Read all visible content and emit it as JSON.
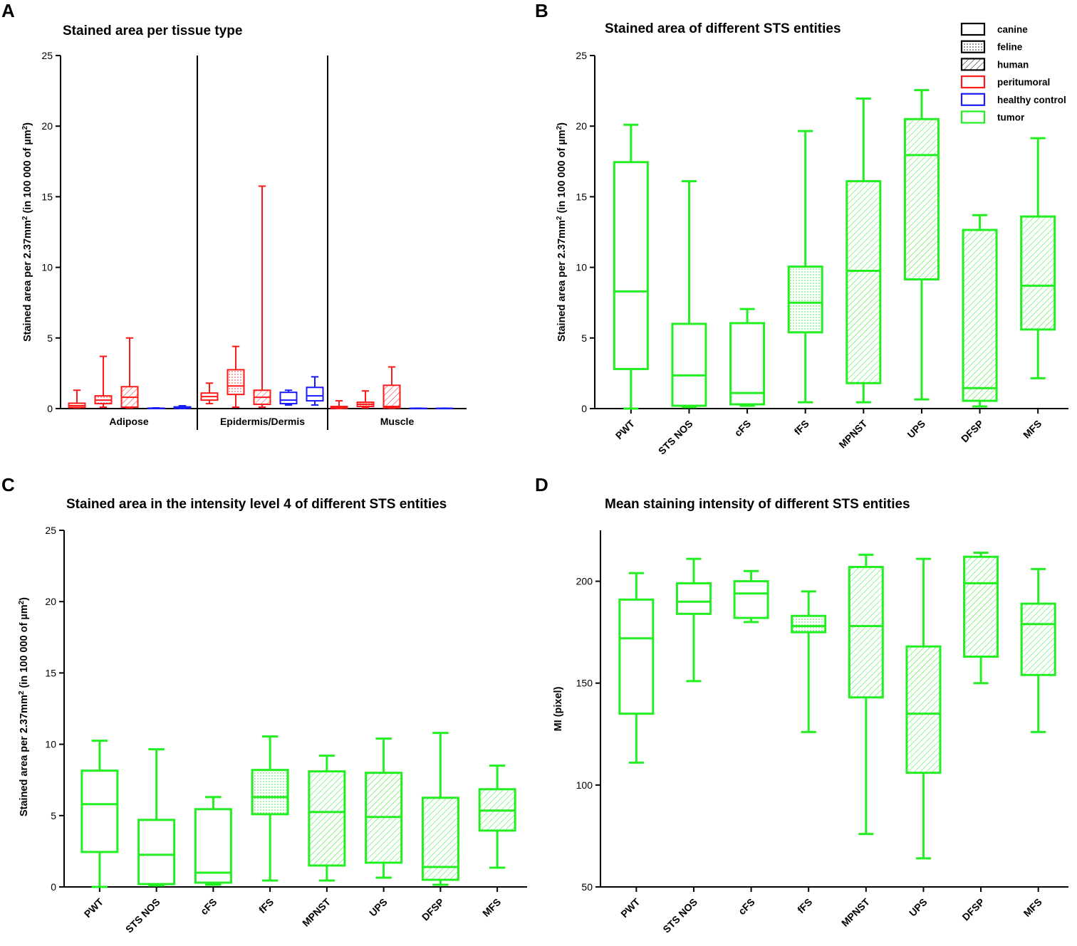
{
  "colors": {
    "red": "#ff1a1a",
    "blue": "#1a1aff",
    "green": "#22ee22",
    "black": "#000000"
  },
  "legend": [
    {
      "label": "canine",
      "pattern": "none",
      "color": "#000000"
    },
    {
      "label": "feline",
      "pattern": "dots",
      "color": "#000000"
    },
    {
      "label": "human",
      "pattern": "hatch",
      "color": "#000000"
    },
    {
      "label": "peritumoral",
      "pattern": "none",
      "color": "#ff1a1a"
    },
    {
      "label": "healthy control",
      "pattern": "none",
      "color": "#1a1aff"
    },
    {
      "label": "tumor",
      "pattern": "none",
      "color": "#22ee22"
    }
  ],
  "chart_data": [
    {
      "id": "A",
      "panel_letter": "A",
      "type": "boxplot",
      "title": "Stained area per tissue type",
      "ylabel": "Stained area per 2.37mm² (in 100 000 of µm²)",
      "ylim": [
        0,
        25
      ],
      "yticks": [
        0,
        5,
        10,
        15,
        20,
        25
      ],
      "groups": [
        {
          "label": "Adipose",
          "boxes": [
            {
              "color": "red",
              "pattern": "none",
              "min": 0.05,
              "q1": 0.08,
              "median": 0.2,
              "q3": 0.38,
              "max": 1.3
            },
            {
              "color": "red",
              "pattern": "dots",
              "min": 0.1,
              "q1": 0.35,
              "median": 0.6,
              "q3": 0.9,
              "max": 3.7
            },
            {
              "color": "red",
              "pattern": "hatch",
              "min": 0.05,
              "q1": 0.1,
              "median": 0.8,
              "q3": 1.55,
              "max": 5.0
            },
            {
              "color": "blue",
              "pattern": "none",
              "min": 0.0,
              "q1": 0.01,
              "median": 0.02,
              "q3": 0.03,
              "max": 0.05
            },
            {
              "color": "blue",
              "pattern": "none",
              "min": 0.0,
              "q1": 0.03,
              "median": 0.08,
              "q3": 0.12,
              "max": 0.2
            }
          ]
        },
        {
          "label": "Epidermis/Dermis",
          "boxes": [
            {
              "color": "red",
              "pattern": "none",
              "min": 0.35,
              "q1": 0.6,
              "median": 0.85,
              "q3": 1.1,
              "max": 1.8
            },
            {
              "color": "red",
              "pattern": "dots",
              "min": 0.1,
              "q1": 1.0,
              "median": 1.6,
              "q3": 2.75,
              "max": 4.4
            },
            {
              "color": "red",
              "pattern": "hatch",
              "min": 0.1,
              "q1": 0.3,
              "median": 0.8,
              "q3": 1.3,
              "max": 15.75
            },
            {
              "color": "blue",
              "pattern": "none",
              "min": 0.25,
              "q1": 0.35,
              "median": 0.6,
              "q3": 1.15,
              "max": 1.3
            },
            {
              "color": "blue",
              "pattern": "none",
              "min": 0.25,
              "q1": 0.55,
              "median": 0.9,
              "q3": 1.5,
              "max": 2.25
            }
          ]
        },
        {
          "label": "Muscle",
          "boxes": [
            {
              "color": "red",
              "pattern": "none",
              "min": 0.0,
              "q1": 0.02,
              "median": 0.08,
              "q3": 0.15,
              "max": 0.55
            },
            {
              "color": "red",
              "pattern": "dots",
              "min": 0.05,
              "q1": 0.15,
              "median": 0.3,
              "q3": 0.45,
              "max": 1.25
            },
            {
              "color": "red",
              "pattern": "hatch",
              "min": 0.02,
              "q1": 0.05,
              "median": 0.15,
              "q3": 1.65,
              "max": 2.95
            },
            {
              "color": "blue",
              "pattern": "none",
              "min": 0.0,
              "q1": 0.0,
              "median": 0.01,
              "q3": 0.02,
              "max": 0.03
            },
            {
              "color": "blue",
              "pattern": "none",
              "min": 0.0,
              "q1": 0.0,
              "median": 0.01,
              "q3": 0.02,
              "max": 0.03
            }
          ]
        }
      ]
    },
    {
      "id": "B",
      "panel_letter": "B",
      "type": "boxplot",
      "title": "Stained area of different STS entities",
      "ylabel": "Stained area per 2.37mm² (in 100 000 of µm²)",
      "ylim": [
        0,
        25
      ],
      "yticks": [
        0,
        5,
        10,
        15,
        20,
        25
      ],
      "categories": [
        "PWT",
        "STS NOS",
        "cFS",
        "fFS",
        "MPNST",
        "UPS",
        "DFSP",
        "MFS"
      ],
      "boxes": [
        {
          "pattern": "none",
          "min": 0.0,
          "q1": 2.8,
          "median": 8.3,
          "q3": 17.45,
          "max": 20.1
        },
        {
          "pattern": "none",
          "min": 0.1,
          "q1": 0.2,
          "median": 2.35,
          "q3": 6.0,
          "max": 16.1
        },
        {
          "pattern": "none",
          "min": 0.2,
          "q1": 0.3,
          "median": 1.1,
          "q3": 6.05,
          "max": 7.05
        },
        {
          "pattern": "dots",
          "min": 0.45,
          "q1": 5.4,
          "median": 7.5,
          "q3": 10.05,
          "max": 19.65
        },
        {
          "pattern": "hatch",
          "min": 0.45,
          "q1": 1.8,
          "median": 9.75,
          "q3": 16.1,
          "max": 21.95
        },
        {
          "pattern": "hatch",
          "min": 0.65,
          "q1": 9.15,
          "median": 17.95,
          "q3": 20.5,
          "max": 22.55
        },
        {
          "pattern": "hatch",
          "min": 0.15,
          "q1": 0.55,
          "median": 1.45,
          "q3": 12.65,
          "max": 13.7
        },
        {
          "pattern": "hatch",
          "min": 2.15,
          "q1": 5.6,
          "median": 8.7,
          "q3": 13.6,
          "max": 19.15
        }
      ]
    },
    {
      "id": "C",
      "panel_letter": "C",
      "type": "boxplot",
      "title": "Stained area in the intensity level 4 of different STS entities",
      "ylabel": "Stained area per 2.37mm² (in 100 000 of µm²)",
      "ylim": [
        0,
        25
      ],
      "yticks": [
        0,
        5,
        10,
        15,
        20,
        25
      ],
      "categories": [
        "PWT",
        "STS NOS",
        "cFS",
        "fFS",
        "MPNST",
        "UPS",
        "DFSP",
        "MFS"
      ],
      "boxes": [
        {
          "pattern": "none",
          "min": 0.0,
          "q1": 2.45,
          "median": 5.8,
          "q3": 8.15,
          "max": 10.25
        },
        {
          "pattern": "none",
          "min": 0.1,
          "q1": 0.2,
          "median": 2.25,
          "q3": 4.7,
          "max": 9.65
        },
        {
          "pattern": "none",
          "min": 0.15,
          "q1": 0.3,
          "median": 1.0,
          "q3": 5.45,
          "max": 6.3
        },
        {
          "pattern": "dots",
          "min": 0.45,
          "q1": 5.1,
          "median": 6.3,
          "q3": 8.2,
          "max": 10.55
        },
        {
          "pattern": "hatch",
          "min": 0.45,
          "q1": 1.5,
          "median": 5.25,
          "q3": 8.1,
          "max": 9.2
        },
        {
          "pattern": "hatch",
          "min": 0.65,
          "q1": 1.7,
          "median": 4.9,
          "q3": 8.0,
          "max": 10.4
        },
        {
          "pattern": "hatch",
          "min": 0.15,
          "q1": 0.5,
          "median": 1.4,
          "q3": 6.25,
          "max": 10.8
        },
        {
          "pattern": "hatch",
          "min": 1.35,
          "q1": 3.95,
          "median": 5.35,
          "q3": 6.85,
          "max": 8.5
        }
      ]
    },
    {
      "id": "D",
      "panel_letter": "D",
      "type": "boxplot",
      "title": "Mean staining intensity of different STS entities",
      "ylabel": "MI (pixel)",
      "ylim": [
        50,
        225
      ],
      "yticks": [
        50,
        100,
        150,
        200
      ],
      "categories": [
        "PWT",
        "STS NOS",
        "cFS",
        "fFS",
        "MPNST",
        "UPS",
        "DFSP",
        "MFS"
      ],
      "boxes": [
        {
          "pattern": "none",
          "min": 111,
          "q1": 135,
          "median": 172,
          "q3": 191,
          "max": 204
        },
        {
          "pattern": "none",
          "min": 151,
          "q1": 184,
          "median": 190,
          "q3": 199,
          "max": 211
        },
        {
          "pattern": "none",
          "min": 180,
          "q1": 182,
          "median": 194,
          "q3": 200,
          "max": 205
        },
        {
          "pattern": "dots",
          "min": 126,
          "q1": 175,
          "median": 178,
          "q3": 183,
          "max": 195
        },
        {
          "pattern": "hatch",
          "min": 76,
          "q1": 143,
          "median": 178,
          "q3": 207,
          "max": 213
        },
        {
          "pattern": "hatch",
          "min": 64,
          "q1": 106,
          "median": 135,
          "q3": 168,
          "max": 211
        },
        {
          "pattern": "hatch",
          "min": 150,
          "q1": 163,
          "median": 199,
          "q3": 212,
          "max": 214
        },
        {
          "pattern": "hatch",
          "min": 126,
          "q1": 154,
          "median": 179,
          "q3": 189,
          "max": 206
        }
      ]
    }
  ]
}
